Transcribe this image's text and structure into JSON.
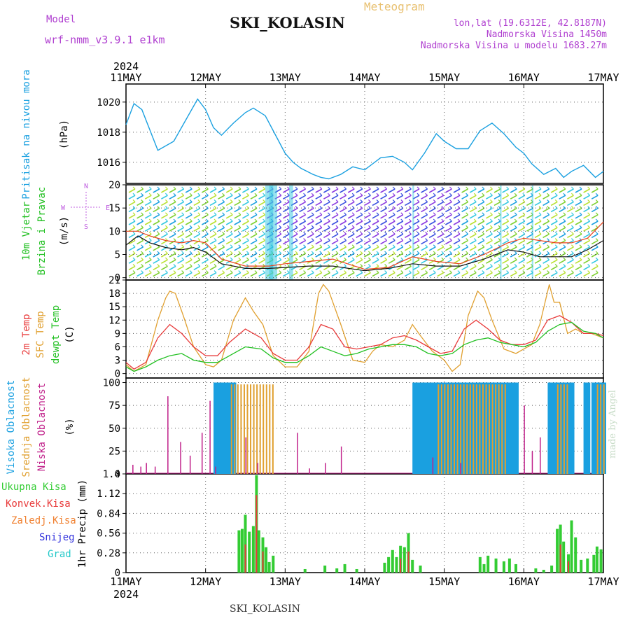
{
  "header": {
    "model_label": "Model",
    "model_value": "wrf-nmm_v3.9.1  e1km",
    "title": "SKI_KOLASIN",
    "meteogram_label": "Meteogram",
    "lonlat": "lon,lat (19.6312E, 42.8187N)",
    "altitude": "Nadmorska Visina 1450m",
    "model_altitude": "Nadmorska Visina u modelu 1683.27m",
    "year_top": "2024",
    "year_bottom": "2024",
    "footer": "SKI_KOLASIN",
    "credit": "made by Angel"
  },
  "colors": {
    "pressure": "#1aa0e0",
    "temp2m": "#e83a3a",
    "sfc": "#e0a030",
    "dewpoint": "#22c022",
    "high_cloud": "#1aa0e0",
    "mid_cloud": "#e0a030",
    "low_cloud": "#c0208a",
    "total_precip": "#33cc33",
    "conv_precip": "#e83a3a",
    "frozen_precip": "#f08030",
    "snow": "#3333dd",
    "hail": "#22c8c8",
    "wind_speed": "#111111",
    "wind_gust": "#e8401a"
  },
  "chart_data": [
    {
      "type": "line",
      "panel": "pressure",
      "ylabel": [
        "Pritisak na nivou mora",
        "(hPa)"
      ],
      "x_ticks": [
        "11MAY",
        "12MAY",
        "13MAY",
        "14MAY",
        "15MAY",
        "16MAY",
        "17MAY"
      ],
      "y_ticks": [
        "1020",
        "1018",
        "1016"
      ],
      "ylim": [
        1014.6,
        1021.2
      ],
      "grid": true,
      "series": [
        {
          "x": [
            0,
            0.1,
            0.2,
            0.4,
            0.6,
            0.75,
            0.9,
            1.0,
            1.1,
            1.2,
            1.35,
            1.5,
            1.6,
            1.75,
            1.9,
            2.0,
            2.1,
            2.2,
            2.35,
            2.45,
            2.55,
            2.7,
            2.85,
            3.0,
            3.1,
            3.2,
            3.35,
            3.5,
            3.6,
            3.75,
            3.9,
            4.0,
            4.15,
            4.3,
            4.45,
            4.6,
            4.75,
            4.9,
            5.0,
            5.1,
            5.25,
            5.4,
            5.5,
            5.6,
            5.75,
            5.9,
            6.0
          ],
          "values": [
            1018.5,
            1019.9,
            1019.5,
            1016.8,
            1017.4,
            1018.8,
            1020.2,
            1019.5,
            1018.3,
            1017.8,
            1018.6,
            1019.3,
            1019.6,
            1019.1,
            1017.6,
            1016.6,
            1016.0,
            1015.6,
            1015.2,
            1015.0,
            1014.9,
            1015.2,
            1015.7,
            1015.5,
            1015.9,
            1016.3,
            1016.4,
            1016.0,
            1015.5,
            1016.6,
            1017.9,
            1017.4,
            1016.9,
            1016.9,
            1018.1,
            1018.6,
            1017.9,
            1017.0,
            1016.6,
            1015.9,
            1015.2,
            1015.6,
            1015.0,
            1015.4,
            1015.8,
            1015.0,
            1015.4
          ]
        }
      ]
    },
    {
      "type": "line",
      "panel": "wind",
      "ylabel": [
        "10m Vjetar",
        "Brzina i Pravac",
        "(m/s)"
      ],
      "compass": [
        "N",
        "W",
        "E",
        "S"
      ],
      "y_ticks": [
        "20",
        "15",
        "10",
        "5",
        "0"
      ],
      "ylim": [
        -0.5,
        20
      ],
      "grid": true,
      "series": [
        {
          "name": "speed",
          "x": [
            0,
            0.15,
            0.3,
            0.5,
            0.7,
            0.85,
            1.0,
            1.2,
            1.5,
            1.8,
            2.0,
            2.3,
            2.6,
            3.0,
            3.3,
            3.6,
            3.9,
            4.2,
            4.5,
            4.8,
            5.0,
            5.2,
            5.4,
            5.6,
            5.8,
            6.0
          ],
          "values": [
            7,
            9,
            7.5,
            6.5,
            6,
            6.5,
            5.5,
            3,
            2,
            2,
            2.2,
            2.5,
            2.5,
            1.5,
            2,
            3,
            2.5,
            2.5,
            4,
            6,
            5.5,
            4.5,
            4.5,
            4.5,
            6,
            8
          ]
        },
        {
          "name": "gust",
          "x": [
            0,
            0.15,
            0.3,
            0.5,
            0.7,
            0.85,
            1.0,
            1.2,
            1.5,
            1.8,
            2.0,
            2.3,
            2.6,
            3.0,
            3.3,
            3.6,
            3.9,
            4.2,
            4.5,
            4.8,
            5.0,
            5.2,
            5.4,
            5.6,
            5.8,
            6.0
          ],
          "values": [
            10,
            10,
            9,
            8,
            7.5,
            8,
            7.5,
            4,
            2.5,
            2.5,
            3,
            3.5,
            4,
            1.8,
            2.2,
            4.5,
            3.5,
            3,
            5,
            7.5,
            8.5,
            8,
            7.5,
            7.5,
            8.5,
            12
          ]
        }
      ]
    },
    {
      "type": "line",
      "panel": "temperature",
      "ylabel": [
        "2m Temp",
        "SFC Temp",
        "dewpt Temp",
        "(C)"
      ],
      "y_ticks": [
        "21",
        "18",
        "15",
        "12",
        "9",
        "6",
        "3",
        "0"
      ],
      "ylim": [
        -1,
        21
      ],
      "grid": true,
      "series": [
        {
          "name": "sfc",
          "x": [
            0,
            0.1,
            0.25,
            0.4,
            0.5,
            0.55,
            0.62,
            0.72,
            0.85,
            1.0,
            1.1,
            1.2,
            1.35,
            1.5,
            1.6,
            1.72,
            1.85,
            2.0,
            2.15,
            2.3,
            2.42,
            2.48,
            2.55,
            2.7,
            2.85,
            3.0,
            3.1,
            3.2,
            3.35,
            3.5,
            3.6,
            3.7,
            3.85,
            4.0,
            4.1,
            4.2,
            4.3,
            4.42,
            4.5,
            4.6,
            4.75,
            4.9,
            5.0,
            5.1,
            5.2,
            5.32,
            5.38,
            5.45,
            5.55,
            5.65,
            5.75,
            5.85,
            6.0
          ],
          "values": [
            2,
            0.5,
            2,
            12,
            17,
            18.5,
            18,
            13,
            6,
            2,
            1.5,
            3,
            12,
            17,
            14,
            11,
            4,
            1.5,
            1.5,
            5,
            18,
            20,
            18.5,
            11,
            3,
            2.5,
            5,
            6.5,
            6,
            7.5,
            11,
            8.5,
            5,
            3,
            0.5,
            2,
            13,
            18.5,
            17,
            12,
            5.5,
            4.5,
            5.5,
            6.5,
            11,
            20,
            16,
            16,
            9,
            10,
            9,
            9,
            8
          ]
        },
        {
          "name": "2m",
          "x": [
            0,
            0.1,
            0.25,
            0.4,
            0.55,
            0.7,
            0.85,
            1.0,
            1.15,
            1.3,
            1.5,
            1.7,
            1.85,
            2.0,
            2.15,
            2.3,
            2.45,
            2.6,
            2.75,
            2.9,
            3.05,
            3.2,
            3.35,
            3.5,
            3.65,
            3.8,
            3.95,
            4.1,
            4.25,
            4.4,
            4.55,
            4.7,
            4.85,
            5.0,
            5.15,
            5.3,
            5.45,
            5.6,
            5.75,
            5.9,
            6.0
          ],
          "values": [
            2.5,
            1,
            2.5,
            8,
            11,
            9,
            6,
            4,
            4,
            7,
            10,
            8,
            4.5,
            3,
            3,
            6,
            11,
            10,
            6,
            5.5,
            6,
            6.5,
            8,
            8.5,
            7.5,
            6,
            4.5,
            5,
            10,
            12,
            10,
            7.5,
            6.5,
            6.5,
            7.5,
            12,
            13,
            11.5,
            9,
            9,
            8.5
          ]
        },
        {
          "name": "dewpt",
          "x": [
            0,
            0.1,
            0.25,
            0.4,
            0.55,
            0.7,
            0.85,
            1.0,
            1.15,
            1.3,
            1.5,
            1.7,
            1.85,
            2.0,
            2.15,
            2.3,
            2.45,
            2.6,
            2.75,
            2.9,
            3.05,
            3.2,
            3.35,
            3.5,
            3.65,
            3.8,
            3.95,
            4.1,
            4.25,
            4.4,
            4.55,
            4.7,
            4.85,
            5.0,
            5.15,
            5.3,
            5.45,
            5.6,
            5.75,
            5.9,
            6.0
          ],
          "values": [
            1.5,
            0.5,
            1.5,
            3,
            4,
            4.5,
            3,
            2.5,
            2.5,
            4,
            6,
            5.5,
            3.5,
            2.5,
            2.5,
            4,
            6,
            5,
            4,
            4.5,
            5.5,
            6,
            6.5,
            6.5,
            6,
            4.5,
            4,
            4.5,
            6.5,
            7.5,
            8,
            7,
            6.5,
            6,
            7,
            9.5,
            11,
            11.5,
            9.5,
            9,
            8
          ]
        }
      ]
    },
    {
      "type": "bar",
      "panel": "cloud",
      "ylabel": [
        "Visoka Oblacnost",
        "Srednja Oblacnost",
        "Niska Oblacnost",
        "(%)"
      ],
      "y_ticks": [
        "100",
        "75",
        "50",
        "25",
        "0"
      ],
      "ylim": [
        0,
        105
      ],
      "grid": true,
      "high_ranges": [
        [
          1.1,
          1.35
        ],
        [
          3.6,
          4.9
        ],
        [
          5.3,
          5.6
        ],
        [
          5.75,
          5.8
        ],
        [
          5.85,
          6.0
        ]
      ],
      "mid_ranges": [
        [
          1.3,
          1.85
        ],
        [
          3.9,
          4.75
        ],
        [
          5.4,
          5.55
        ],
        [
          5.9,
          6.0
        ]
      ],
      "low_spikes": {
        "x": [
          0.08,
          0.18,
          0.25,
          0.36,
          0.52,
          0.68,
          0.8,
          0.95,
          1.05,
          1.12,
          1.5,
          1.65,
          2.15,
          2.3,
          2.5,
          2.7,
          3.85,
          4.2,
          5.0,
          5.1,
          5.2
        ],
        "values": [
          10,
          8,
          12,
          8,
          85,
          35,
          20,
          45,
          80,
          8,
          40,
          12,
          45,
          6,
          12,
          30,
          18,
          12,
          75,
          25,
          40
        ]
      }
    },
    {
      "type": "bar",
      "panel": "precip",
      "ylabel": [
        "1hr Precip",
        "(mm)"
      ],
      "legend": [
        "Ukupna Kisa",
        "Konvek.Kisa",
        "Zaledj.Kisa",
        "Snijeg",
        "Grad"
      ],
      "y_ticks": [
        "1.4",
        "1.12",
        "0.84",
        "0.56",
        "0.28",
        "0"
      ],
      "ylim": [
        0,
        1.4
      ],
      "grid": true,
      "total": {
        "x": [
          1.42,
          1.46,
          1.5,
          1.55,
          1.6,
          1.64,
          1.67,
          1.72,
          1.76,
          1.8,
          1.85,
          2.25,
          2.5,
          2.65,
          2.75,
          2.9,
          3.25,
          3.3,
          3.35,
          3.4,
          3.45,
          3.5,
          3.55,
          3.6,
          3.7,
          4.45,
          4.5,
          4.55,
          4.65,
          4.75,
          4.82,
          4.9,
          5.15,
          5.25,
          5.35,
          5.42,
          5.46,
          5.5,
          5.56,
          5.6,
          5.65,
          5.72,
          5.8,
          5.88,
          5.92,
          5.97
        ],
        "values": [
          0.6,
          0.62,
          0.82,
          0.58,
          0.66,
          1.38,
          0.6,
          0.5,
          0.36,
          0.15,
          0.24,
          0.05,
          0.1,
          0.06,
          0.12,
          0.05,
          0.14,
          0.22,
          0.32,
          0.22,
          0.38,
          0.36,
          0.56,
          0.18,
          0.1,
          0.22,
          0.12,
          0.24,
          0.2,
          0.16,
          0.2,
          0.12,
          0.06,
          0.04,
          0.1,
          0.62,
          0.68,
          0.44,
          0.26,
          0.74,
          0.5,
          0.18,
          0.2,
          0.25,
          0.37,
          0.33
        ]
      },
      "conv": {
        "x": [
          1.5,
          1.64,
          1.72,
          3.45,
          3.55,
          5.46,
          5.56
        ],
        "values": [
          0.4,
          1.1,
          0.3,
          0.2,
          0.3,
          0.4,
          0.16
        ]
      }
    }
  ]
}
